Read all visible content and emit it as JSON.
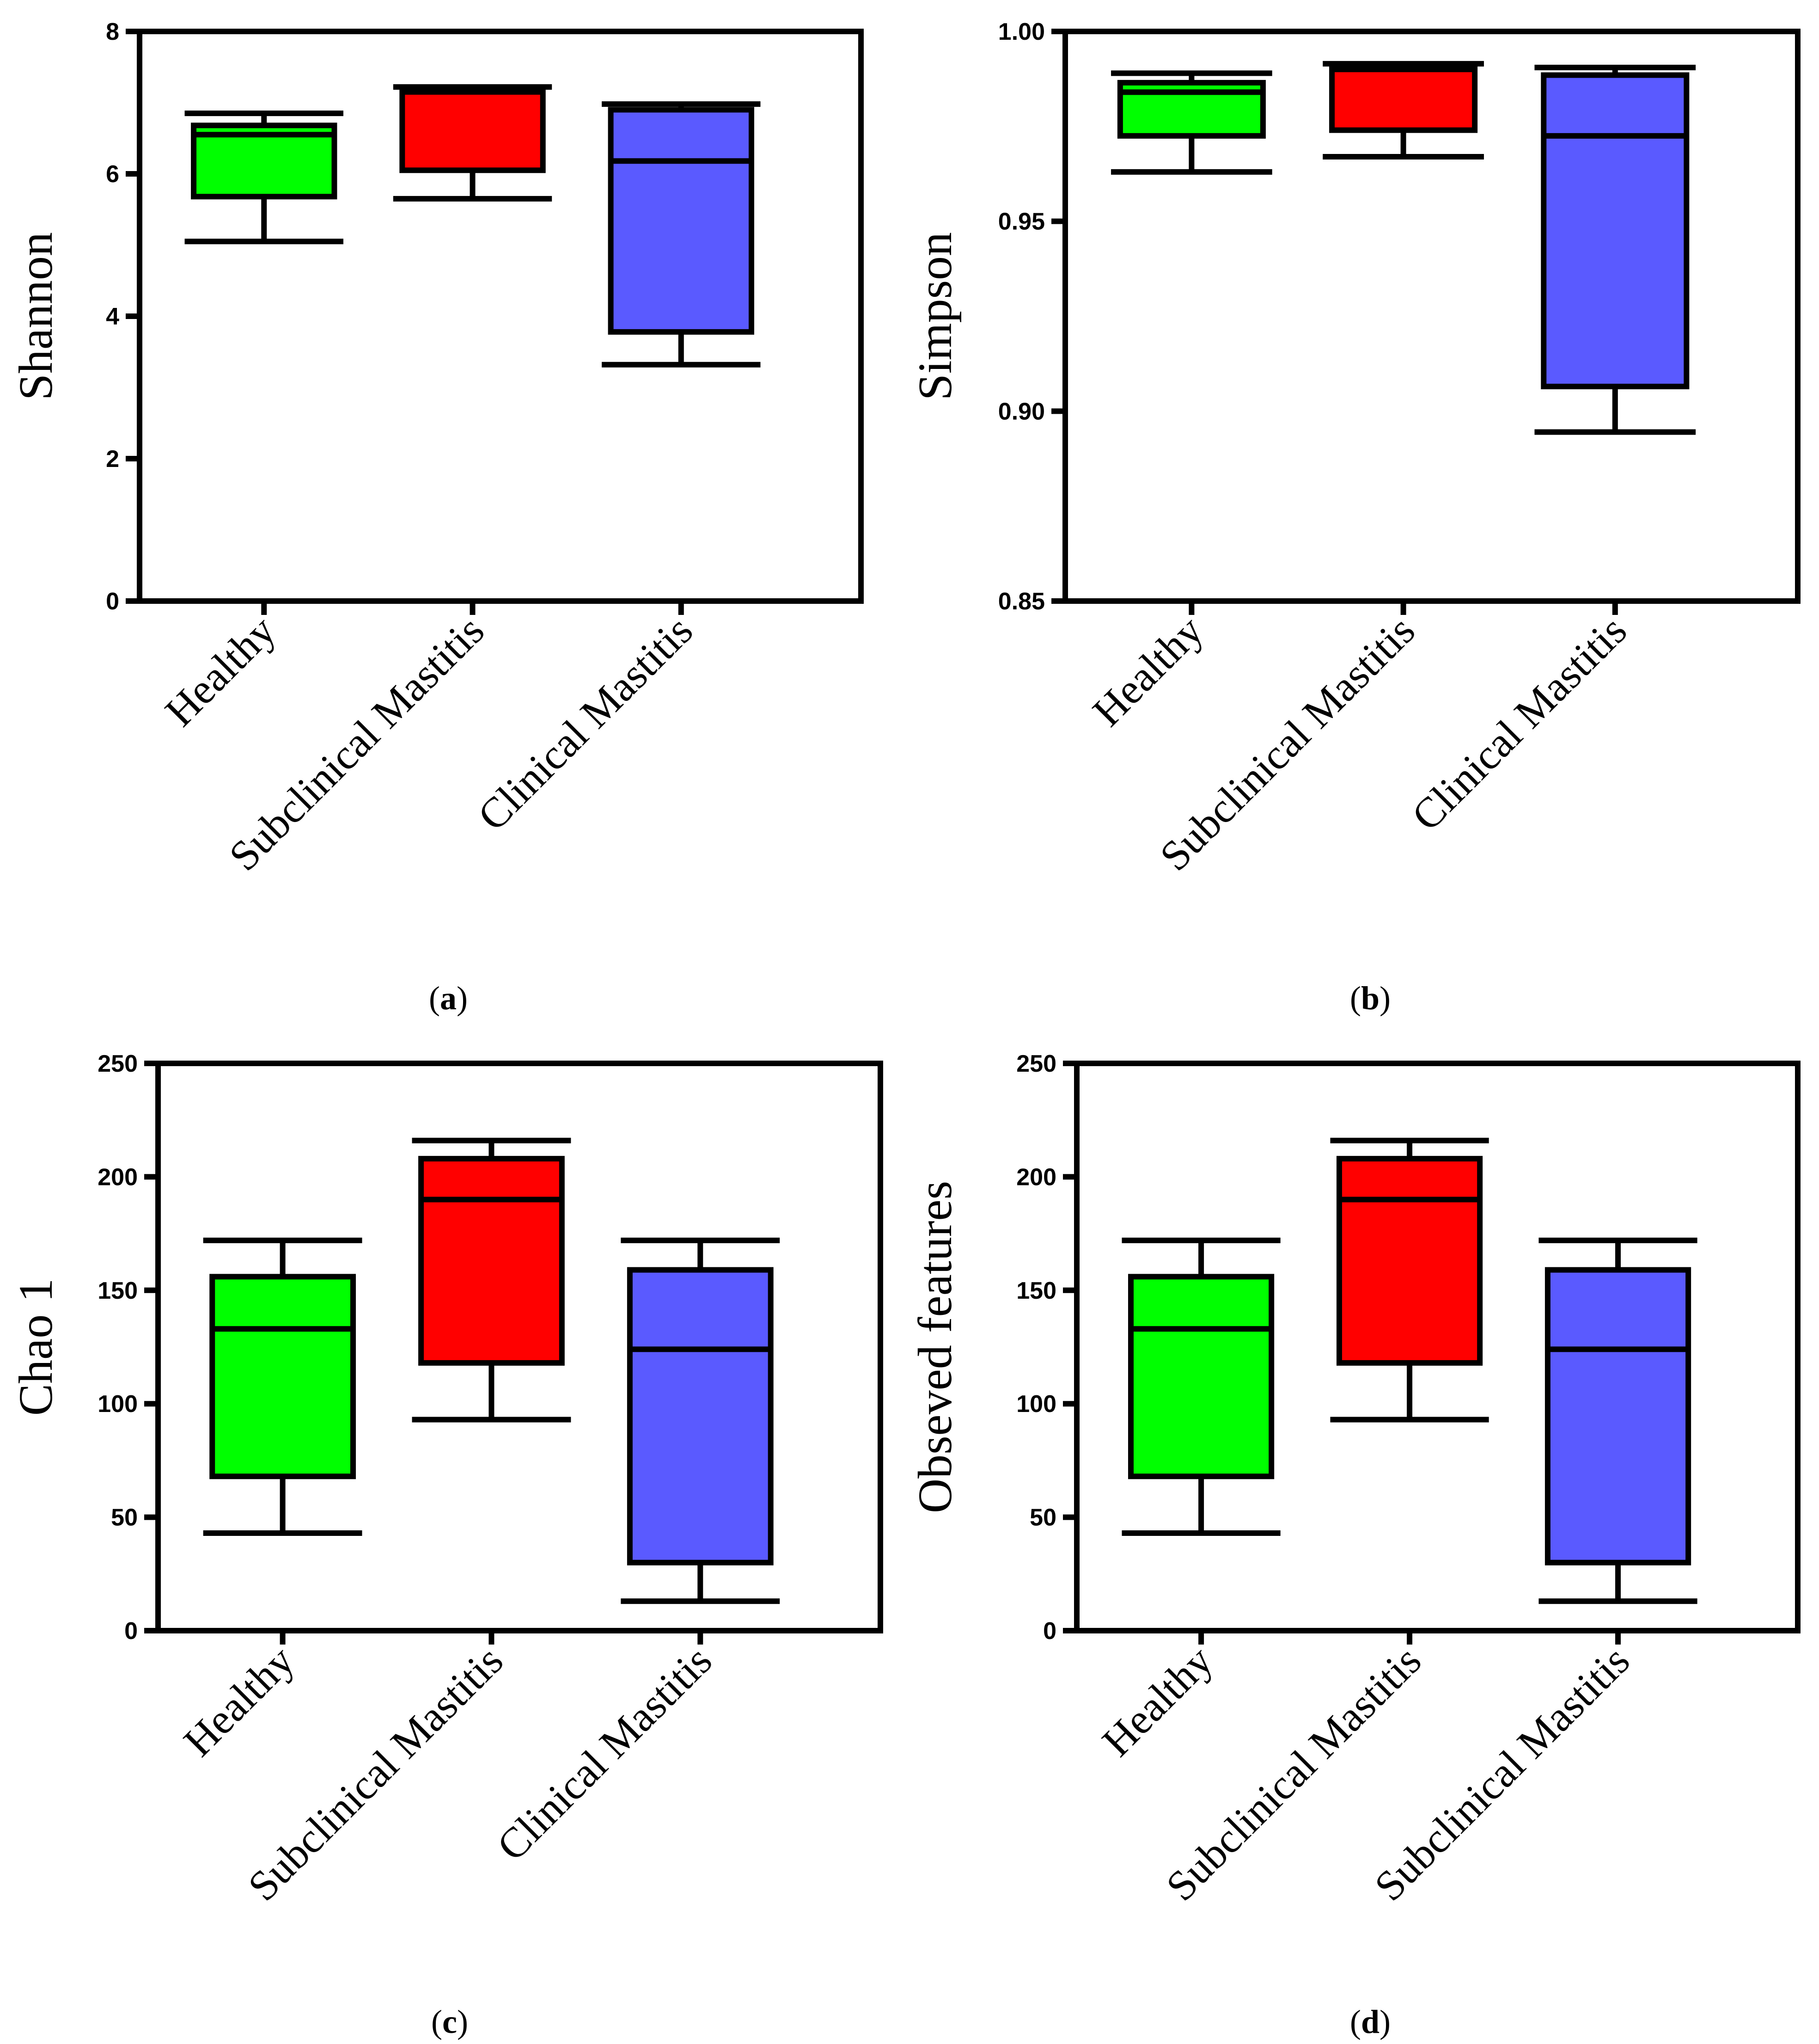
{
  "colors": {
    "healthy": "#00ff00",
    "subclinical": "#ff0000",
    "clinical": "#5a5aff",
    "stroke": "#000000"
  },
  "chart_data": [
    {
      "type": "box",
      "panel": "a",
      "ylabel": "Shannon",
      "ylim": [
        0,
        8
      ],
      "yticks": [
        0,
        2,
        4,
        6,
        8
      ],
      "ytick_labels": [
        "0",
        "2",
        "4",
        "6",
        "8"
      ],
      "grid": false,
      "categories": [
        "Healthy",
        "Subclinical Mastitis",
        "Clinical Mastitis"
      ],
      "boxes": [
        {
          "min": 5.05,
          "q1": 5.68,
          "median": 6.55,
          "q3": 6.68,
          "max": 6.85
        },
        {
          "min": 5.65,
          "q1": 6.05,
          "median": 7.15,
          "q3": 7.18,
          "max": 7.22
        },
        {
          "min": 3.32,
          "q1": 3.78,
          "median": 6.18,
          "q3": 6.9,
          "max": 6.98
        }
      ]
    },
    {
      "type": "box",
      "panel": "b",
      "ylabel": "Simpson",
      "ylim": [
        0.85,
        1.0
      ],
      "yticks": [
        0.85,
        0.9,
        0.95,
        1.0
      ],
      "ytick_labels": [
        "0.85",
        "0.90",
        "0.95",
        "1.00"
      ],
      "grid": false,
      "categories": [
        "Healthy",
        "Subclinical Mastitis",
        "Clinical Mastitis"
      ],
      "boxes": [
        {
          "min": 0.963,
          "q1": 0.9725,
          "median": 0.984,
          "q3": 0.9865,
          "max": 0.989
        },
        {
          "min": 0.967,
          "q1": 0.974,
          "median": 0.99,
          "q3": 0.9905,
          "max": 0.9915
        },
        {
          "min": 0.8945,
          "q1": 0.9065,
          "median": 0.9725,
          "q3": 0.9885,
          "max": 0.9905
        }
      ]
    },
    {
      "type": "box",
      "panel": "c",
      "ylabel": "Chao 1",
      "ylim": [
        0,
        250
      ],
      "yticks": [
        0,
        50,
        100,
        150,
        200,
        250
      ],
      "ytick_labels": [
        "0",
        "50",
        "100",
        "150",
        "200",
        "250"
      ],
      "grid": false,
      "categories": [
        "Healthy",
        "Subclinical Mastitis",
        "Clinical Mastitis"
      ],
      "boxes": [
        {
          "min": 43,
          "q1": 68,
          "median": 133,
          "q3": 156,
          "max": 172
        },
        {
          "min": 93,
          "q1": 118,
          "median": 190,
          "q3": 208,
          "max": 216
        },
        {
          "min": 13,
          "q1": 30,
          "median": 124,
          "q3": 159,
          "max": 172
        }
      ]
    },
    {
      "type": "box",
      "panel": "d",
      "ylabel": "Obseved features",
      "ylim": [
        0,
        250
      ],
      "yticks": [
        0,
        50,
        100,
        150,
        200,
        250
      ],
      "ytick_labels": [
        "0",
        "50",
        "100",
        "150",
        "200",
        "250"
      ],
      "grid": false,
      "categories": [
        "Healthy",
        "Subclinical Mastitis",
        "Subclinical Mastitis"
      ],
      "boxes": [
        {
          "min": 43,
          "q1": 68,
          "median": 133,
          "q3": 156,
          "max": 172
        },
        {
          "min": 93,
          "q1": 118,
          "median": 190,
          "q3": 208,
          "max": 216
        },
        {
          "min": 13,
          "q1": 30,
          "median": 124,
          "q3": 159,
          "max": 172
        }
      ]
    }
  ],
  "captions": {
    "a": {
      "open": "(",
      "letter": "a",
      "close": ")"
    },
    "b": {
      "open": "(",
      "letter": "b",
      "close": ")"
    },
    "c": {
      "open": "(",
      "letter": "c",
      "close": ")"
    },
    "d": {
      "open": "(",
      "letter": "d",
      "close": ")"
    }
  }
}
